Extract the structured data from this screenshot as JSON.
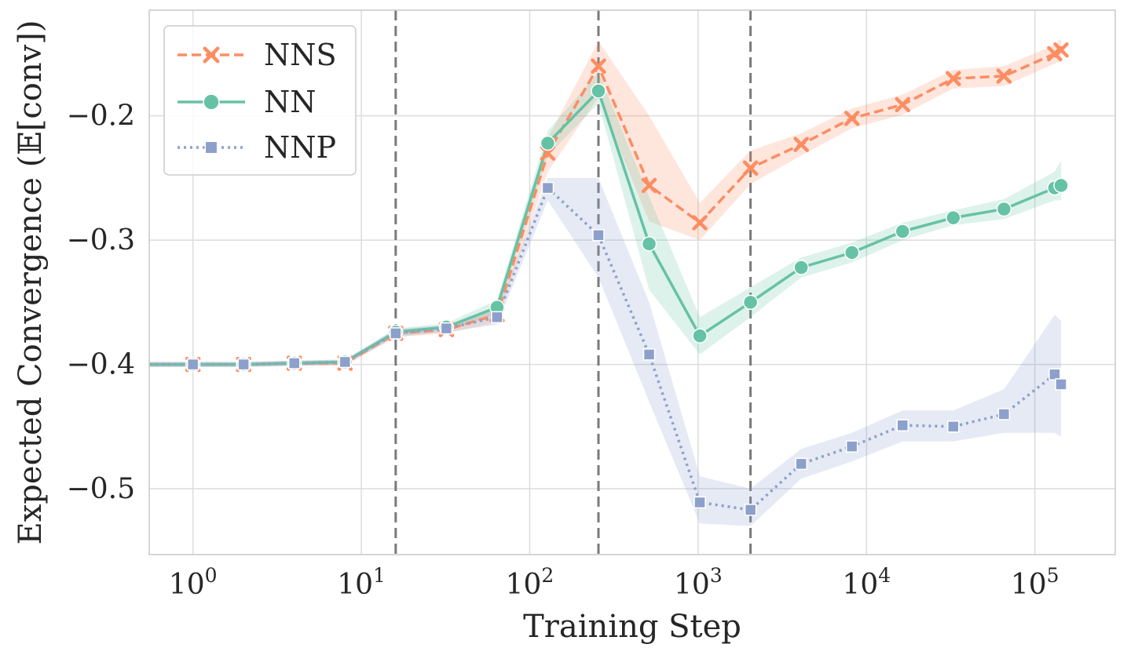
{
  "chart_data": {
    "type": "line",
    "xscale": "log",
    "xlabel": "Training Step",
    "ylabel": "Expected Convergence (𝔼[conv])",
    "xlim": [
      0.55,
      300000
    ],
    "ylim": [
      -0.553,
      -0.115
    ],
    "grid": true,
    "legend_position": "top-left",
    "x_ticks": [
      {
        "value": 1,
        "base": "10",
        "exp": "0"
      },
      {
        "value": 10,
        "base": "10",
        "exp": "1"
      },
      {
        "value": 100,
        "base": "10",
        "exp": "2"
      },
      {
        "value": 1000,
        "base": "10",
        "exp": "3"
      },
      {
        "value": 10000,
        "base": "10",
        "exp": "4"
      },
      {
        "value": 100000,
        "base": "10",
        "exp": "5"
      }
    ],
    "y_ticks": [
      {
        "value": -0.2,
        "label": "−0.2"
      },
      {
        "value": -0.3,
        "label": "−0.3"
      },
      {
        "value": -0.4,
        "label": "−0.4"
      },
      {
        "value": -0.5,
        "label": "−0.5"
      }
    ],
    "vlines": [
      16,
      256,
      2048
    ],
    "series": [
      {
        "name": "NNS",
        "color": "#fc8d62",
        "dash": "dashed",
        "marker": "x",
        "x": [
          0.55,
          1,
          2,
          4,
          8,
          16,
          32,
          64,
          128,
          256,
          512,
          1024,
          2048,
          4096,
          8192,
          16384,
          32768,
          65536,
          131072,
          143000
        ],
        "y": [
          -0.4,
          -0.4,
          -0.4,
          -0.399,
          -0.399,
          -0.375,
          -0.372,
          -0.36,
          -0.23,
          -0.16,
          -0.256,
          -0.286,
          -0.242,
          -0.223,
          -0.202,
          -0.191,
          -0.17,
          -0.168,
          -0.15,
          -0.147
        ],
        "lower": [
          -0.402,
          -0.402,
          -0.402,
          -0.401,
          -0.401,
          -0.378,
          -0.375,
          -0.366,
          -0.245,
          -0.185,
          -0.285,
          -0.3,
          -0.255,
          -0.232,
          -0.21,
          -0.199,
          -0.178,
          -0.176,
          -0.158,
          -0.156
        ],
        "upper": [
          -0.398,
          -0.398,
          -0.398,
          -0.397,
          -0.397,
          -0.372,
          -0.369,
          -0.354,
          -0.218,
          -0.14,
          -0.2,
          -0.27,
          -0.228,
          -0.214,
          -0.194,
          -0.183,
          -0.163,
          -0.16,
          -0.143,
          -0.138
        ]
      },
      {
        "name": "NN",
        "color": "#66c2a5",
        "dash": "solid",
        "marker": "circle",
        "x": [
          0.55,
          1,
          2,
          4,
          8,
          16,
          32,
          64,
          128,
          256,
          512,
          1024,
          2048,
          4096,
          8192,
          16384,
          32768,
          65536,
          131072,
          143000
        ],
        "y": [
          -0.4,
          -0.4,
          -0.4,
          -0.399,
          -0.398,
          -0.374,
          -0.37,
          -0.354,
          -0.222,
          -0.18,
          -0.303,
          -0.377,
          -0.35,
          -0.322,
          -0.31,
          -0.293,
          -0.282,
          -0.275,
          -0.258,
          -0.256
        ],
        "lower": [
          -0.402,
          -0.402,
          -0.402,
          -0.401,
          -0.4,
          -0.377,
          -0.373,
          -0.36,
          -0.232,
          -0.19,
          -0.34,
          -0.392,
          -0.362,
          -0.33,
          -0.318,
          -0.3,
          -0.288,
          -0.283,
          -0.268,
          -0.268
        ],
        "upper": [
          -0.398,
          -0.398,
          -0.398,
          -0.397,
          -0.396,
          -0.371,
          -0.367,
          -0.348,
          -0.212,
          -0.165,
          -0.265,
          -0.362,
          -0.338,
          -0.314,
          -0.302,
          -0.286,
          -0.276,
          -0.267,
          -0.245,
          -0.236
        ]
      },
      {
        "name": "NNP",
        "color": "#8da0cb",
        "dash": "dotted",
        "marker": "square",
        "x": [
          0.55,
          1,
          2,
          4,
          8,
          16,
          32,
          64,
          128,
          256,
          512,
          1024,
          2048,
          4096,
          8192,
          16384,
          32768,
          65536,
          131072,
          143000
        ],
        "y": [
          -0.4,
          -0.4,
          -0.4,
          -0.399,
          -0.398,
          -0.375,
          -0.371,
          -0.362,
          -0.258,
          -0.296,
          -0.392,
          -0.511,
          -0.517,
          -0.48,
          -0.466,
          -0.449,
          -0.45,
          -0.44,
          -0.408,
          -0.416
        ],
        "lower": [
          -0.402,
          -0.402,
          -0.402,
          -0.401,
          -0.4,
          -0.378,
          -0.374,
          -0.368,
          -0.268,
          -0.33,
          -0.43,
          -0.528,
          -0.53,
          -0.492,
          -0.478,
          -0.462,
          -0.462,
          -0.455,
          -0.455,
          -0.458
        ],
        "upper": [
          -0.398,
          -0.398,
          -0.398,
          -0.397,
          -0.396,
          -0.372,
          -0.368,
          -0.356,
          -0.25,
          -0.25,
          -0.35,
          -0.49,
          -0.5,
          -0.468,
          -0.455,
          -0.437,
          -0.437,
          -0.42,
          -0.36,
          -0.365
        ]
      }
    ]
  }
}
